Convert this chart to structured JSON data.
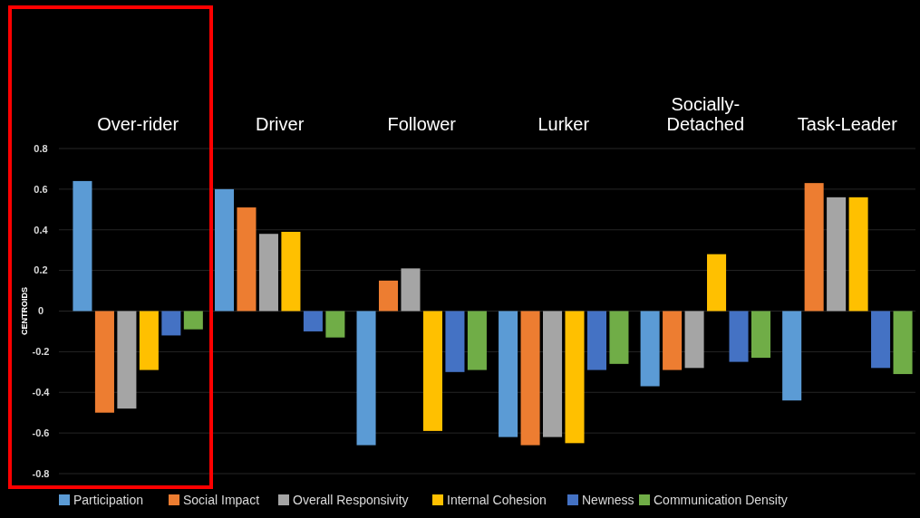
{
  "chart_data": {
    "type": "bar",
    "ylabel": "CENTROIDS",
    "categories": [
      "Over-rider",
      "Driver",
      "Follower",
      "Lurker",
      "Socially-Detached",
      "Task-Leader"
    ],
    "series": [
      {
        "name": "Participation",
        "color": "#5b9bd5",
        "values": [
          0.64,
          0.6,
          -0.66,
          -0.62,
          -0.37,
          -0.44
        ]
      },
      {
        "name": "Social Impact",
        "color": "#ed7d31",
        "values": [
          -0.5,
          0.51,
          0.15,
          -0.66,
          -0.29,
          0.63
        ]
      },
      {
        "name": "Overall Responsivity",
        "color": "#a5a5a5",
        "values": [
          -0.48,
          0.38,
          0.21,
          -0.62,
          -0.28,
          0.56
        ]
      },
      {
        "name": "Internal Cohesion",
        "color": "#ffc000",
        "values": [
          -0.29,
          0.39,
          -0.59,
          -0.65,
          0.28,
          0.56
        ]
      },
      {
        "name": "Newness",
        "color": "#4472c4",
        "values": [
          -0.12,
          -0.1,
          -0.3,
          -0.29,
          -0.25,
          -0.28
        ]
      },
      {
        "name": "Communication Density",
        "color": "#70ad47",
        "values": [
          -0.09,
          -0.13,
          -0.29,
          -0.26,
          -0.23,
          -0.31
        ]
      }
    ],
    "ylim": [
      -0.8,
      0.8
    ],
    "yticks": [
      0.8,
      0.6,
      0.4,
      0.2,
      0,
      -0.2,
      -0.4,
      -0.6,
      -0.8
    ],
    "grid": "y",
    "legend": "bottom"
  }
}
